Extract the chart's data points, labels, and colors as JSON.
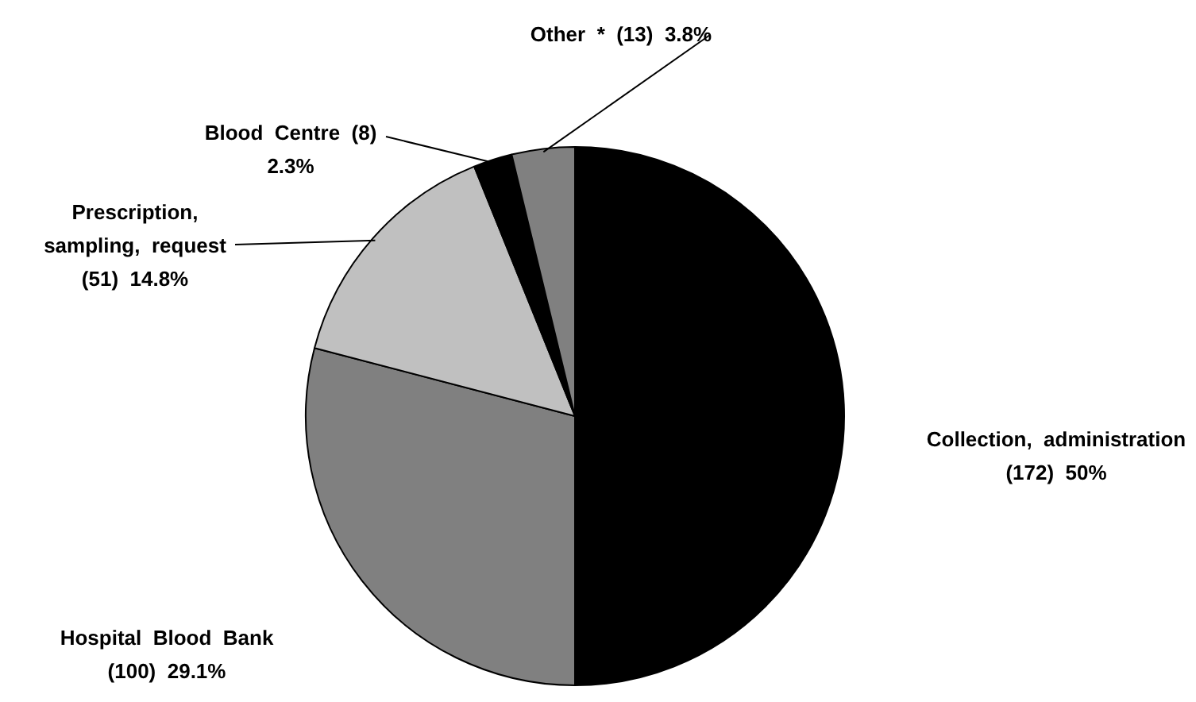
{
  "chart_data": {
    "type": "pie",
    "categories": [
      "Collection, administration",
      "Hospital Blood Bank",
      "Prescription, sampling, request",
      "Blood Centre",
      "Other *"
    ],
    "values": [
      172,
      100,
      51,
      8,
      13
    ],
    "colors": [
      "#000000",
      "#808080",
      "#c0c0c0",
      "#000000",
      "#808080"
    ],
    "value_labels": [
      "(172)  50%",
      "(100)  29.1%",
      "(51)  14.8%",
      "(8)  2.3%",
      "(13)  3.8%"
    ],
    "legend": false
  }
}
